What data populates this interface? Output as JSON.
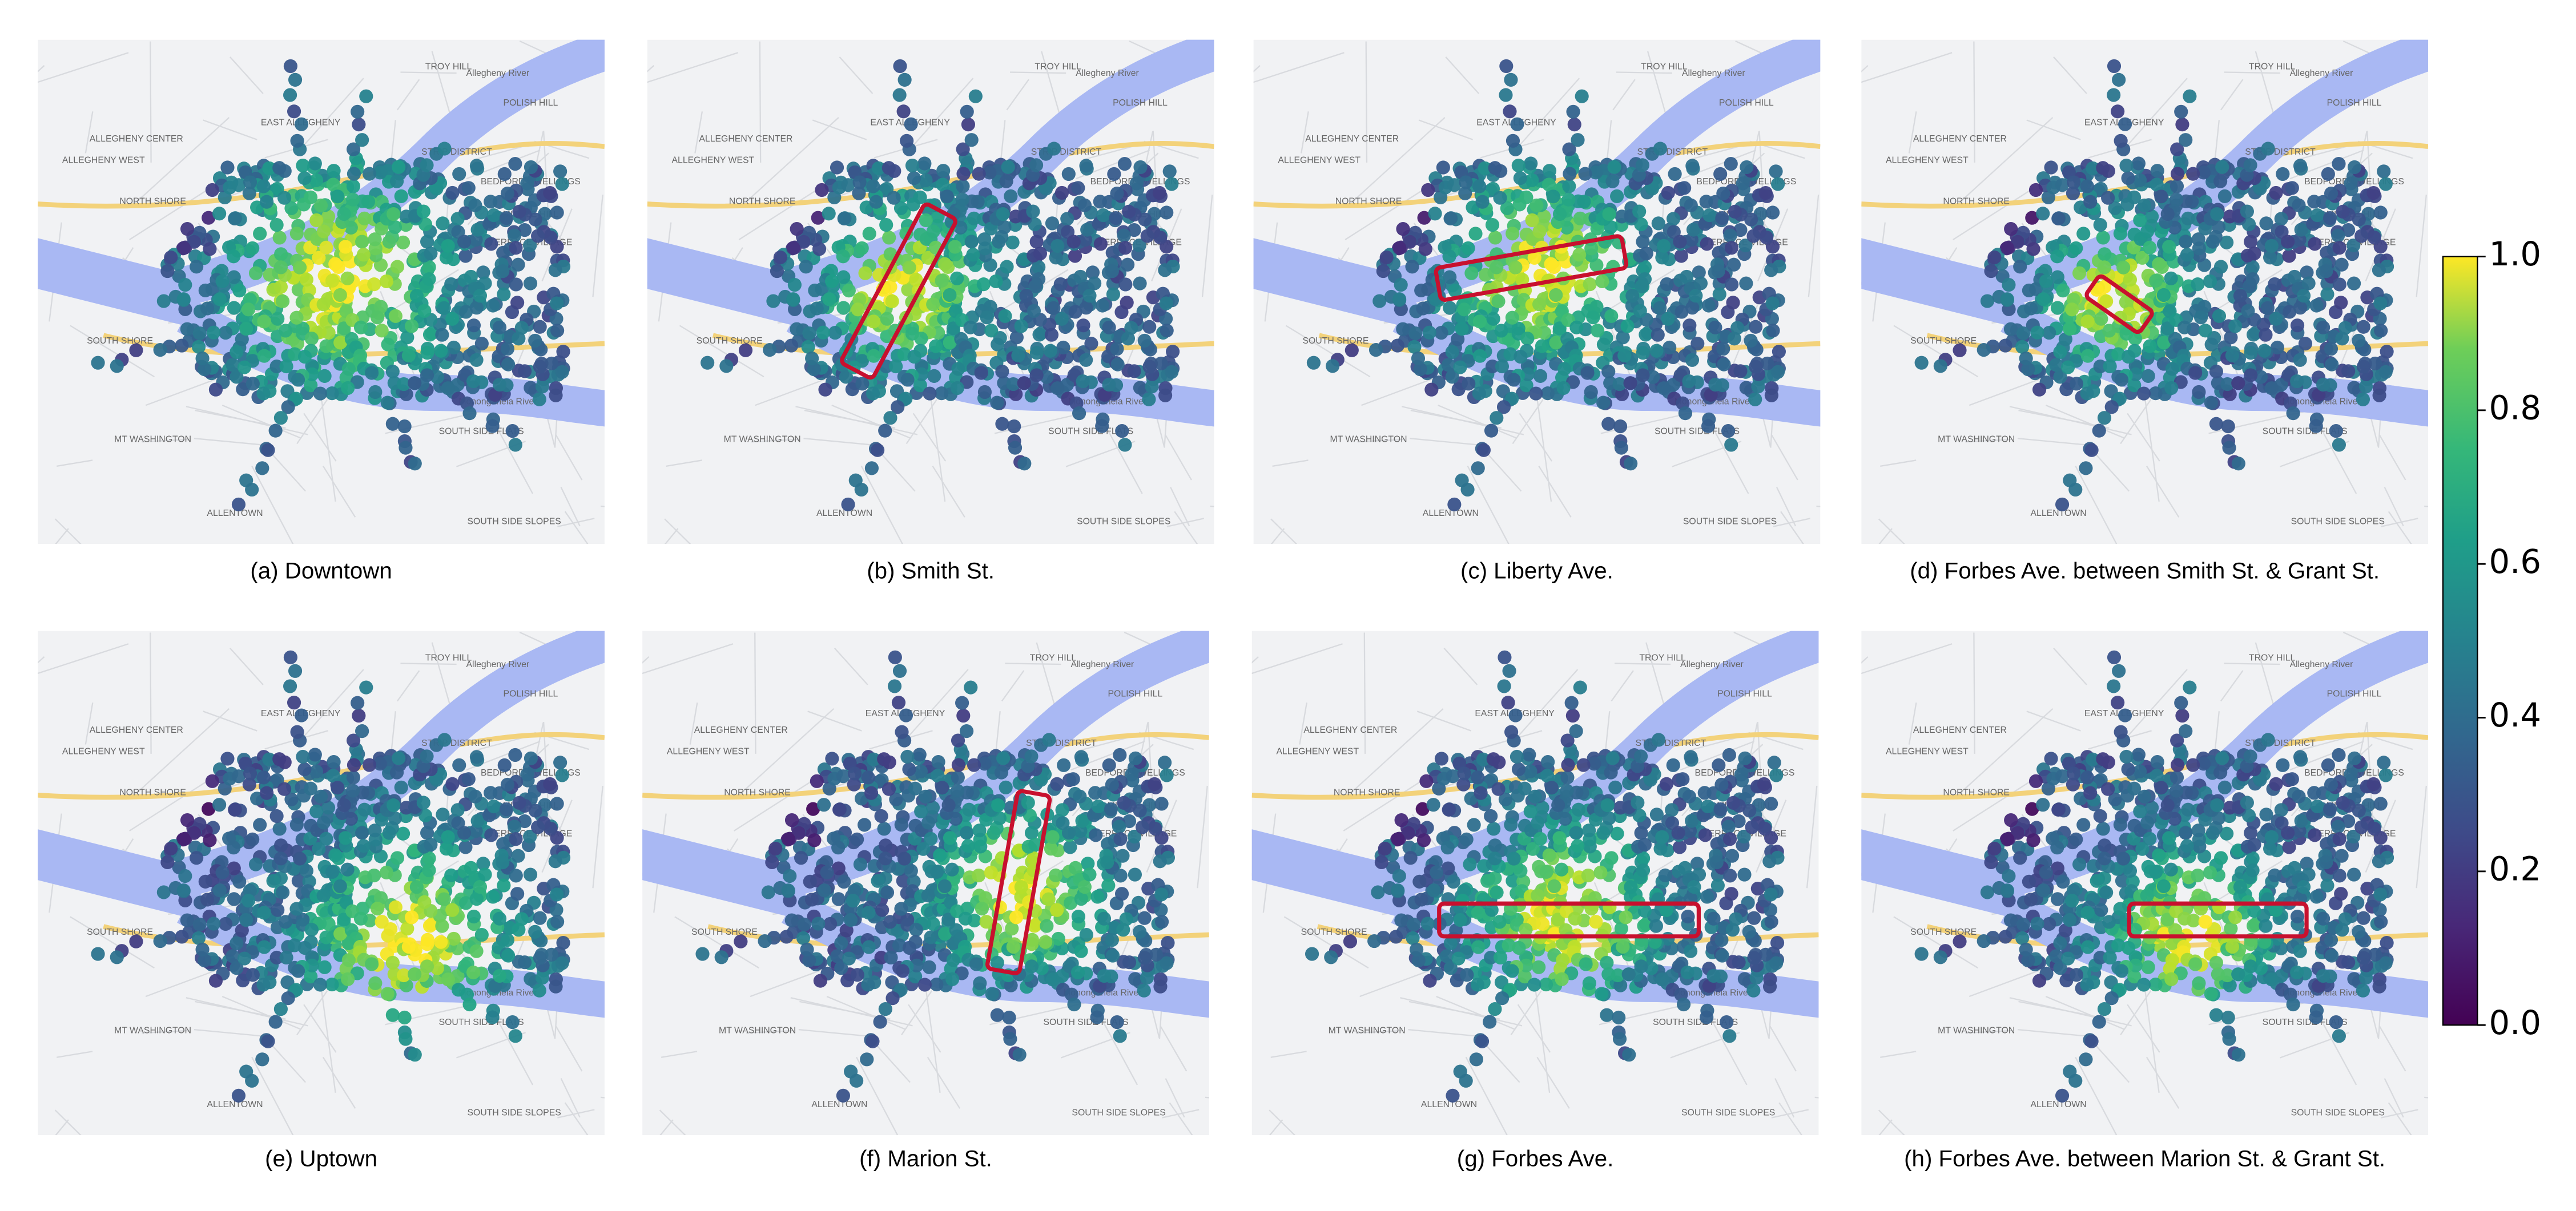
{
  "panels": [
    {
      "caption": "(a) Downtown"
    },
    {
      "caption": "(b) Smith St."
    },
    {
      "caption": "(c) Liberty Ave."
    },
    {
      "caption": "(d) Forbes Ave. between Smith St. & Grant St."
    },
    {
      "caption": "(e) Uptown"
    },
    {
      "caption": "(f) Marion St."
    },
    {
      "caption": "(g) Forbes Ave."
    },
    {
      "caption": "(h) Forbes Ave. between Marion St. & Grant St."
    }
  ],
  "map_labels": [
    "TROY HILL",
    "POLISH HILL",
    "EAST ALLEGHENY",
    "STRIP DISTRICT",
    "BEDFORD DWELLINGS",
    "MIDDLE HILL",
    "TERRACE VILLAGE",
    "NORTH SHORE",
    "ALLEGHENY WEST",
    "ALLEGHENY CENTER",
    "SOUTH SHORE",
    "MT WASHINGTON",
    "ALLENTOWN",
    "SOUTH SIDE FLATS",
    "SOUTH SIDE SLOPES",
    "Allegheny River",
    "Monongahela River"
  ],
  "colorbar": {
    "ylim": [
      0,
      1
    ],
    "ticks": [
      {
        "value": 0,
        "label": "0.0"
      },
      0.2,
      0.4,
      0.6,
      0.8,
      {
        "value": 1,
        "label": "1.0"
      }
    ]
  }
}
